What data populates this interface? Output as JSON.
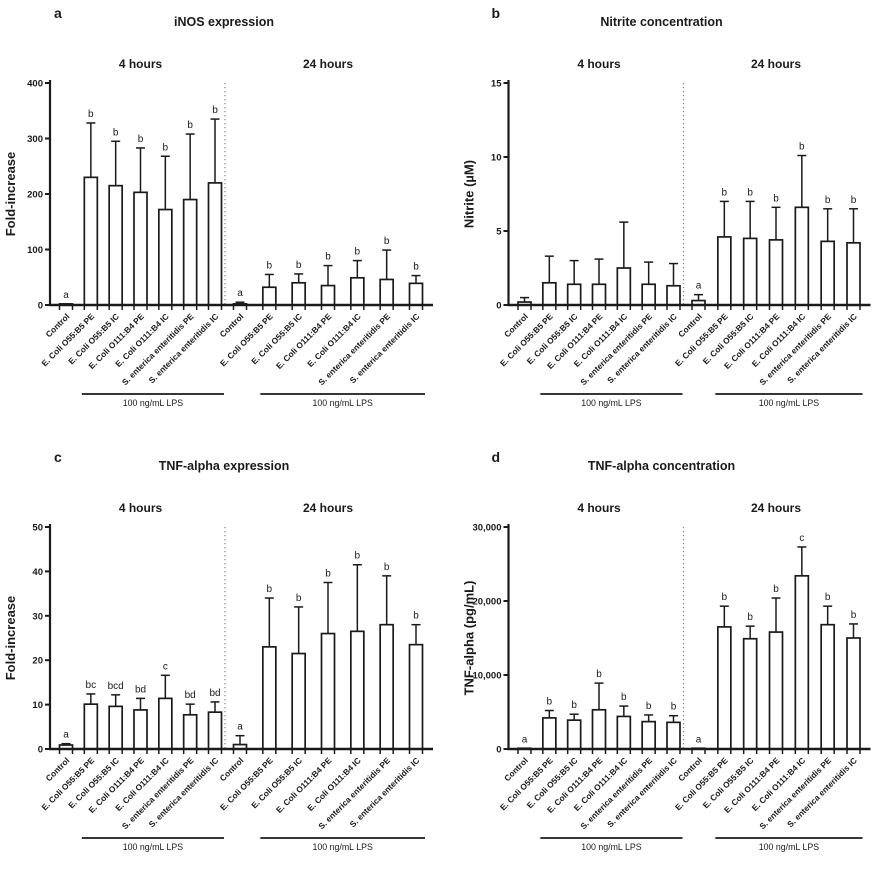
{
  "page": {
    "background": "#ffffff",
    "ink_color": "#1a1a1a",
    "separator_color": "#808080"
  },
  "categories": [
    "Control",
    "E. Coli O55:B5 PE",
    "E. Coli O55:B5 IC",
    "E. Coli O111:B4 PE",
    "E. Coli O111:B4 IC",
    "S. enterica enteritidis PE",
    "S. enterica enteritidis IC"
  ],
  "lps_annotation": "100 ng/mL LPS",
  "chart_data": [
    {
      "type": "bar",
      "panel_letter": "a",
      "title": "iNOS expression",
      "ylabel": "Fold-increase",
      "ylim": [
        0,
        400
      ],
      "yticks": [
        0,
        100,
        200,
        300,
        400
      ],
      "ytick_labels": [
        "0",
        "100",
        "200",
        "300",
        "400"
      ],
      "grid": false,
      "legend": null,
      "categories": [
        "Control",
        "E. Coli O55:B5 PE",
        "E. Coli O55:B5 IC",
        "E. Coli O111:B4 PE",
        "E. Coli O111:B4 IC",
        "S. enterica enteritidis PE",
        "S. enterica enteritidis IC"
      ],
      "groups": [
        {
          "label": "4 hours",
          "values": [
            2,
            230,
            215,
            203,
            172,
            190,
            220
          ],
          "sd": [
            0,
            98,
            80,
            80,
            96,
            118,
            115
          ],
          "sig_letters": [
            "a",
            "b",
            "b",
            "b",
            "b",
            "b",
            "b"
          ],
          "lps_annotation": "100 ng/mL LPS"
        },
        {
          "label": "24 hours",
          "values": [
            2,
            32,
            40,
            35,
            49,
            46,
            39
          ],
          "sd": [
            3,
            23,
            16,
            36,
            31,
            53,
            14
          ],
          "sig_letters": [
            "a",
            "b",
            "b",
            "b",
            "b",
            "b",
            "b"
          ],
          "lps_annotation": "100 ng/mL LPS"
        }
      ]
    },
    {
      "type": "bar",
      "panel_letter": "b",
      "title": "Nitrite concentration",
      "ylabel": "Nitrite (µM)",
      "ylim": [
        0,
        15
      ],
      "yticks": [
        0,
        5,
        10,
        15
      ],
      "ytick_labels": [
        "0",
        "5",
        "10",
        "15"
      ],
      "grid": false,
      "legend": null,
      "categories": [
        "Control",
        "E. Coli O55:B5 PE",
        "E. Coli O55:B5 IC",
        "E. Coli O111:B4 PE",
        "E. Coli O111:B4 IC",
        "S. enterica enteritidis PE",
        "S. enterica enteritidis IC"
      ],
      "groups": [
        {
          "label": "4 hours",
          "values": [
            0.2,
            1.5,
            1.4,
            1.4,
            2.5,
            1.4,
            1.3
          ],
          "sd": [
            0.3,
            1.8,
            1.6,
            1.7,
            3.1,
            1.5,
            1.5
          ],
          "sig_letters": [
            "",
            "",
            "",
            "",
            "",
            "",
            ""
          ],
          "lps_annotation": "100 ng/mL LPS"
        },
        {
          "label": "24 hours",
          "values": [
            0.3,
            4.6,
            4.5,
            4.4,
            6.6,
            4.3,
            4.2
          ],
          "sd": [
            0.4,
            2.4,
            2.5,
            2.2,
            3.5,
            2.2,
            2.3
          ],
          "sig_letters": [
            "a",
            "b",
            "b",
            "b",
            "b",
            "b",
            "b"
          ],
          "lps_annotation": "100 ng/mL LPS"
        }
      ]
    },
    {
      "type": "bar",
      "panel_letter": "c",
      "title": "TNF-alpha expression",
      "ylabel": "Fold-increase",
      "ylim": [
        0,
        50
      ],
      "yticks": [
        0,
        10,
        20,
        30,
        40,
        50
      ],
      "ytick_labels": [
        "0",
        "10",
        "20",
        "30",
        "40",
        "50"
      ],
      "grid": false,
      "legend": null,
      "categories": [
        "Control",
        "E. Coli O55:B5 PE",
        "E. Coli O55:B5 IC",
        "E. Coli O111:B4 PE",
        "E. Coli O111:B4 IC",
        "S. enterica enteritidis PE",
        "S. enterica enteritidis IC"
      ],
      "groups": [
        {
          "label": "4 hours",
          "values": [
            0.9,
            10.1,
            9.6,
            8.8,
            11.4,
            7.7,
            8.3
          ],
          "sd": [
            0.3,
            2.3,
            2.6,
            2.6,
            5.2,
            2.4,
            2.3
          ],
          "sig_letters": [
            "a",
            "bc",
            "bcd",
            "bd",
            "c",
            "bd",
            "bd"
          ],
          "lps_annotation": "100 ng/mL LPS"
        },
        {
          "label": "24 hours",
          "values": [
            1.0,
            23.0,
            21.5,
            26.0,
            26.5,
            28.0,
            23.5
          ],
          "sd": [
            2.0,
            11.0,
            10.5,
            11.5,
            15.0,
            11.0,
            4.5
          ],
          "sig_letters": [
            "a",
            "b",
            "b",
            "b",
            "b",
            "b",
            "b"
          ],
          "lps_annotation": "100 ng/mL LPS"
        }
      ]
    },
    {
      "type": "bar",
      "panel_letter": "d",
      "title": "TNF-alpha concentration",
      "ylabel": "TNF-alpha (pg/mL)",
      "ylim": [
        0,
        30000
      ],
      "yticks": [
        0,
        10000,
        20000,
        30000
      ],
      "ytick_labels": [
        "0",
        "10,000",
        "20,000",
        "30,000"
      ],
      "grid": false,
      "legend": null,
      "categories": [
        "Control",
        "E. Coli O55:B5 PE",
        "E. Coli O55:B5 IC",
        "E. Coli O111:B4 PE",
        "E. Coli O111:B4 IC",
        "S. enterica enteritidis PE",
        "S. enterica enteritidis IC"
      ],
      "groups": [
        {
          "label": "4 hours",
          "values": [
            100,
            4200,
            3900,
            5300,
            4400,
            3700,
            3600
          ],
          "sd": [
            0,
            1000,
            800,
            3600,
            1400,
            900,
            900
          ],
          "sig_letters": [
            "a",
            "b",
            "b",
            "b",
            "b",
            "b",
            "b"
          ],
          "lps_annotation": "100 ng/mL LPS"
        },
        {
          "label": "24 hours",
          "values": [
            100,
            16500,
            14900,
            15800,
            23400,
            16800,
            15000
          ],
          "sd": [
            0,
            2800,
            1700,
            4600,
            3900,
            2500,
            1900
          ],
          "sig_letters": [
            "a",
            "b",
            "b",
            "b",
            "c",
            "b",
            "b"
          ],
          "lps_annotation": "100 ng/mL LPS"
        }
      ]
    }
  ]
}
